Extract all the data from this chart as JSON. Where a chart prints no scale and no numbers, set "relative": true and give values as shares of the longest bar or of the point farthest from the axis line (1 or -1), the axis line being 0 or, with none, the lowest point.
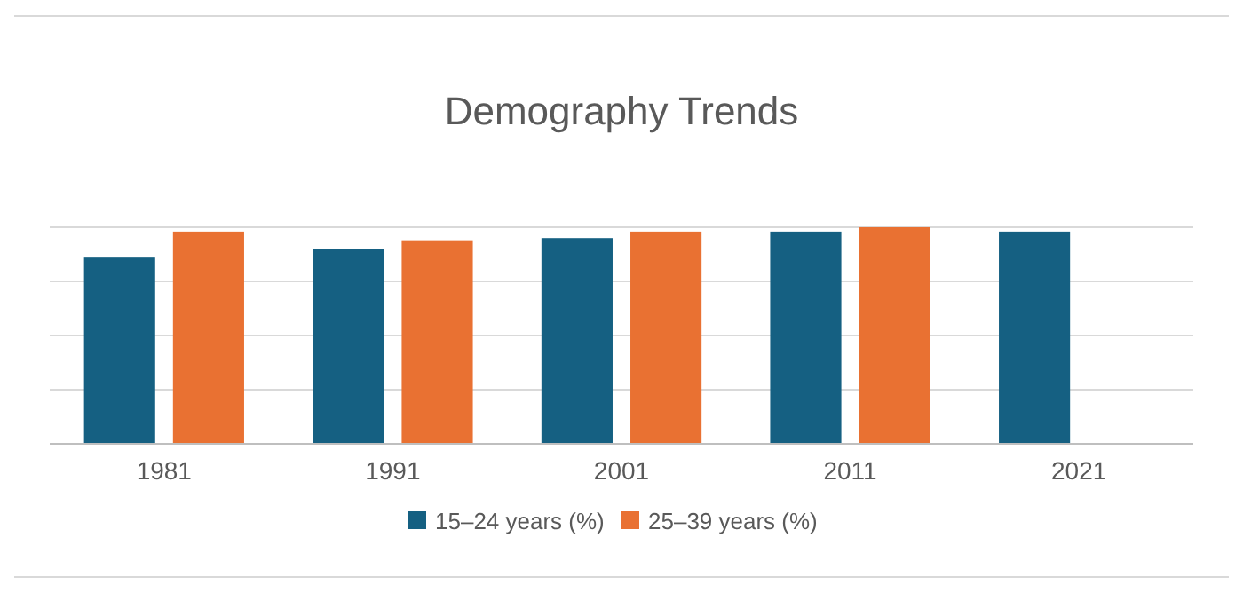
{
  "chart_data": {
    "type": "bar",
    "title": "Demography Trends",
    "relative": true,
    "grid": true,
    "legend": "bottom",
    "categories": [
      "1981",
      "1991",
      "2001",
      "2011",
      "2021"
    ],
    "series": [
      {
        "name": "15–24 years (%)",
        "color": "#156082",
        "values": [
          0.86,
          0.9,
          0.95,
          0.98,
          0.98
        ]
      },
      {
        "name": "25–39 years (%)",
        "color": "#e97132",
        "values": [
          0.98,
          0.94,
          0.98,
          1,
          null
        ]
      }
    ]
  }
}
